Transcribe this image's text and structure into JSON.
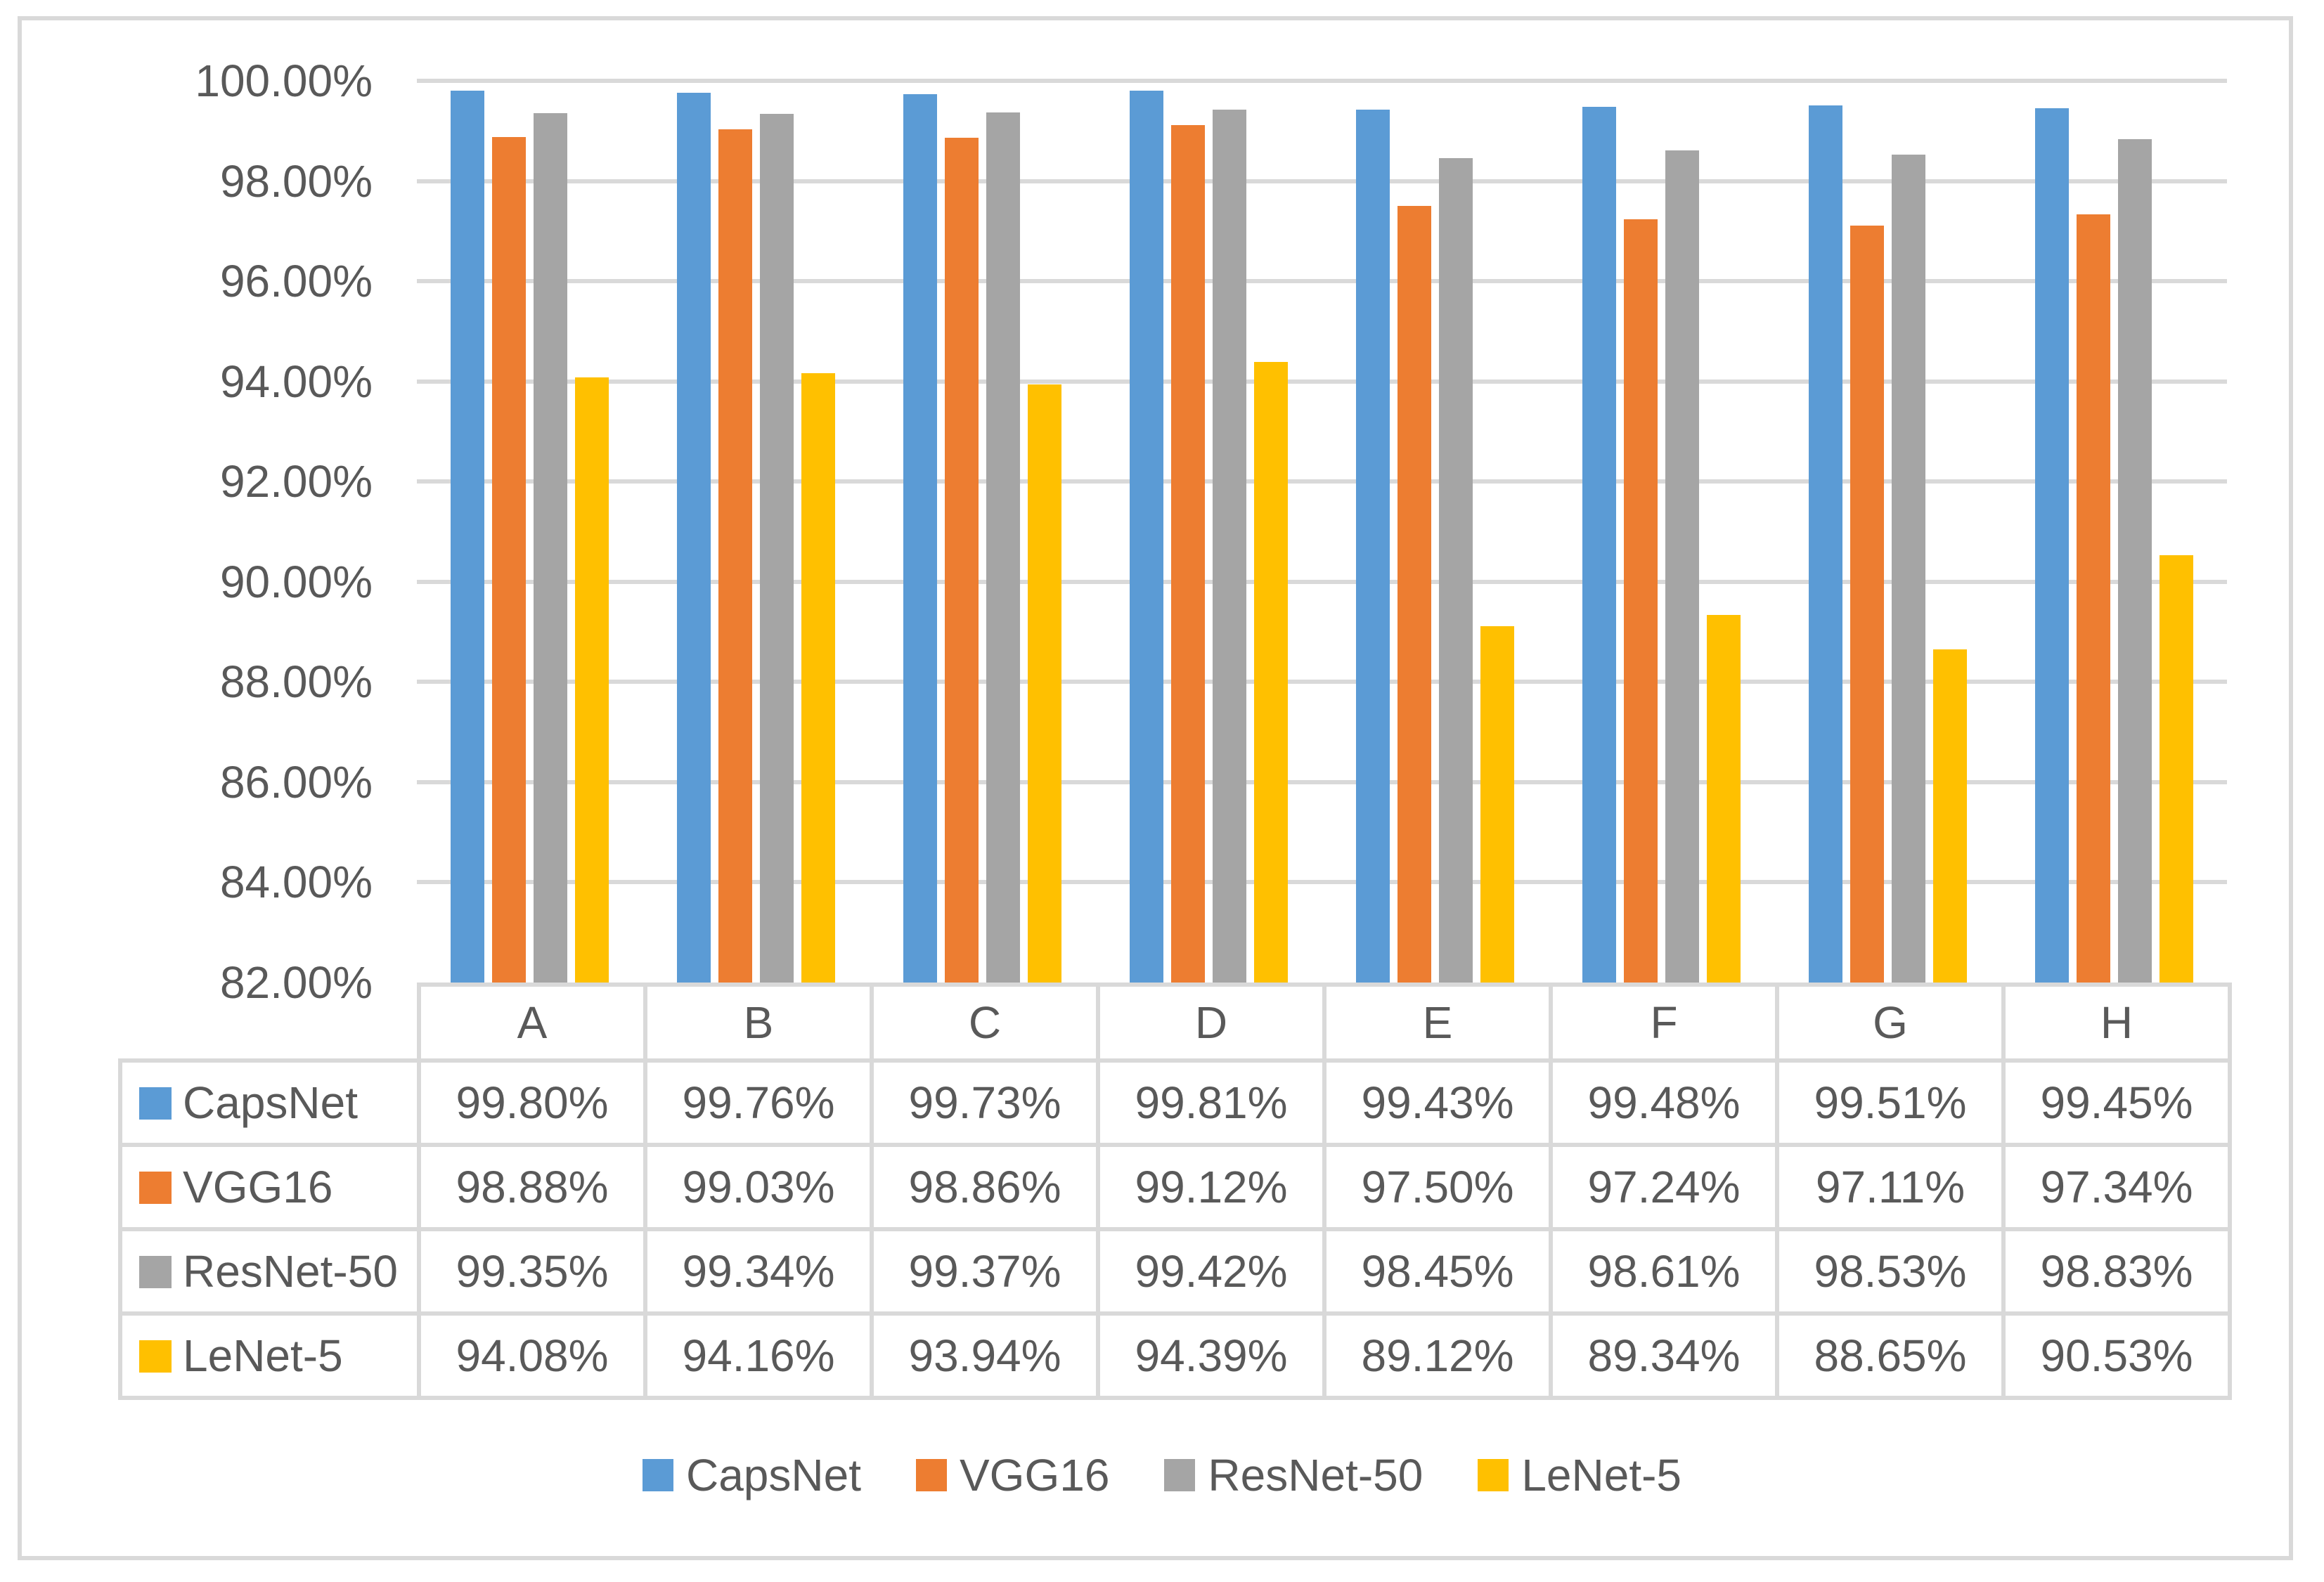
{
  "figure": {
    "background_color": "#FFFFFF",
    "frame_border_color": "#D9D9D9",
    "gridline_color": "#D9D9D9",
    "text_color": "#595959"
  },
  "chart_data": {
    "type": "bar",
    "title": "",
    "categories": [
      "A",
      "B",
      "C",
      "D",
      "E",
      "F",
      "G",
      "H"
    ],
    "series": [
      {
        "name": "CapsNet",
        "color": "#5B9BD5",
        "values": [
          99.8,
          99.76,
          99.73,
          99.81,
          99.43,
          99.48,
          99.51,
          99.45
        ]
      },
      {
        "name": "VGG16",
        "color": "#ED7D31",
        "values": [
          98.88,
          99.03,
          98.86,
          99.12,
          97.5,
          97.24,
          97.11,
          97.34
        ]
      },
      {
        "name": "ResNet-50",
        "color": "#A5A5A5",
        "values": [
          99.35,
          99.34,
          99.37,
          99.42,
          98.45,
          98.61,
          98.53,
          98.83
        ]
      },
      {
        "name": "LeNet-5",
        "color": "#FFC000",
        "values": [
          94.08,
          94.16,
          93.94,
          94.39,
          89.12,
          89.34,
          88.65,
          90.53
        ]
      }
    ],
    "y_axis": {
      "min": 82,
      "max": 100,
      "step": 2,
      "format": "percent",
      "tick_labels": [
        "100.00%",
        "98.00%",
        "96.00%",
        "94.00%",
        "92.00%",
        "90.00%",
        "88.00%",
        "86.00%",
        "84.00%",
        "82.00%"
      ]
    },
    "grid": true,
    "legend_position": "bottom",
    "data_table_shown": true
  },
  "data_table": {
    "column_headers": [
      "A",
      "B",
      "C",
      "D",
      "E",
      "F",
      "G",
      "H"
    ],
    "rows": [
      {
        "label": "CapsNet",
        "swatch_color": "#5B9BD5",
        "cells": [
          "99.80%",
          "99.76%",
          "99.73%",
          "99.81%",
          "99.43%",
          "99.48%",
          "99.51%",
          "99.45%"
        ]
      },
      {
        "label": "VGG16",
        "swatch_color": "#ED7D31",
        "cells": [
          "98.88%",
          "99.03%",
          "98.86%",
          "99.12%",
          "97.50%",
          "97.24%",
          "97.11%",
          "97.34%"
        ]
      },
      {
        "label": "ResNet-50",
        "swatch_color": "#A5A5A5",
        "cells": [
          "99.35%",
          "99.34%",
          "99.37%",
          "99.42%",
          "98.45%",
          "98.61%",
          "98.53%",
          "98.83%"
        ]
      },
      {
        "label": "LeNet-5",
        "swatch_color": "#FFC000",
        "cells": [
          "94.08%",
          "94.16%",
          "93.94%",
          "94.39%",
          "89.12%",
          "89.34%",
          "88.65%",
          "90.53%"
        ]
      }
    ]
  },
  "legend": {
    "items": [
      {
        "label": "CapsNet",
        "color": "#5B9BD5"
      },
      {
        "label": "VGG16",
        "color": "#ED7D31"
      },
      {
        "label": "ResNet-50",
        "color": "#A5A5A5"
      },
      {
        "label": "LeNet-5",
        "color": "#FFC000"
      }
    ]
  }
}
